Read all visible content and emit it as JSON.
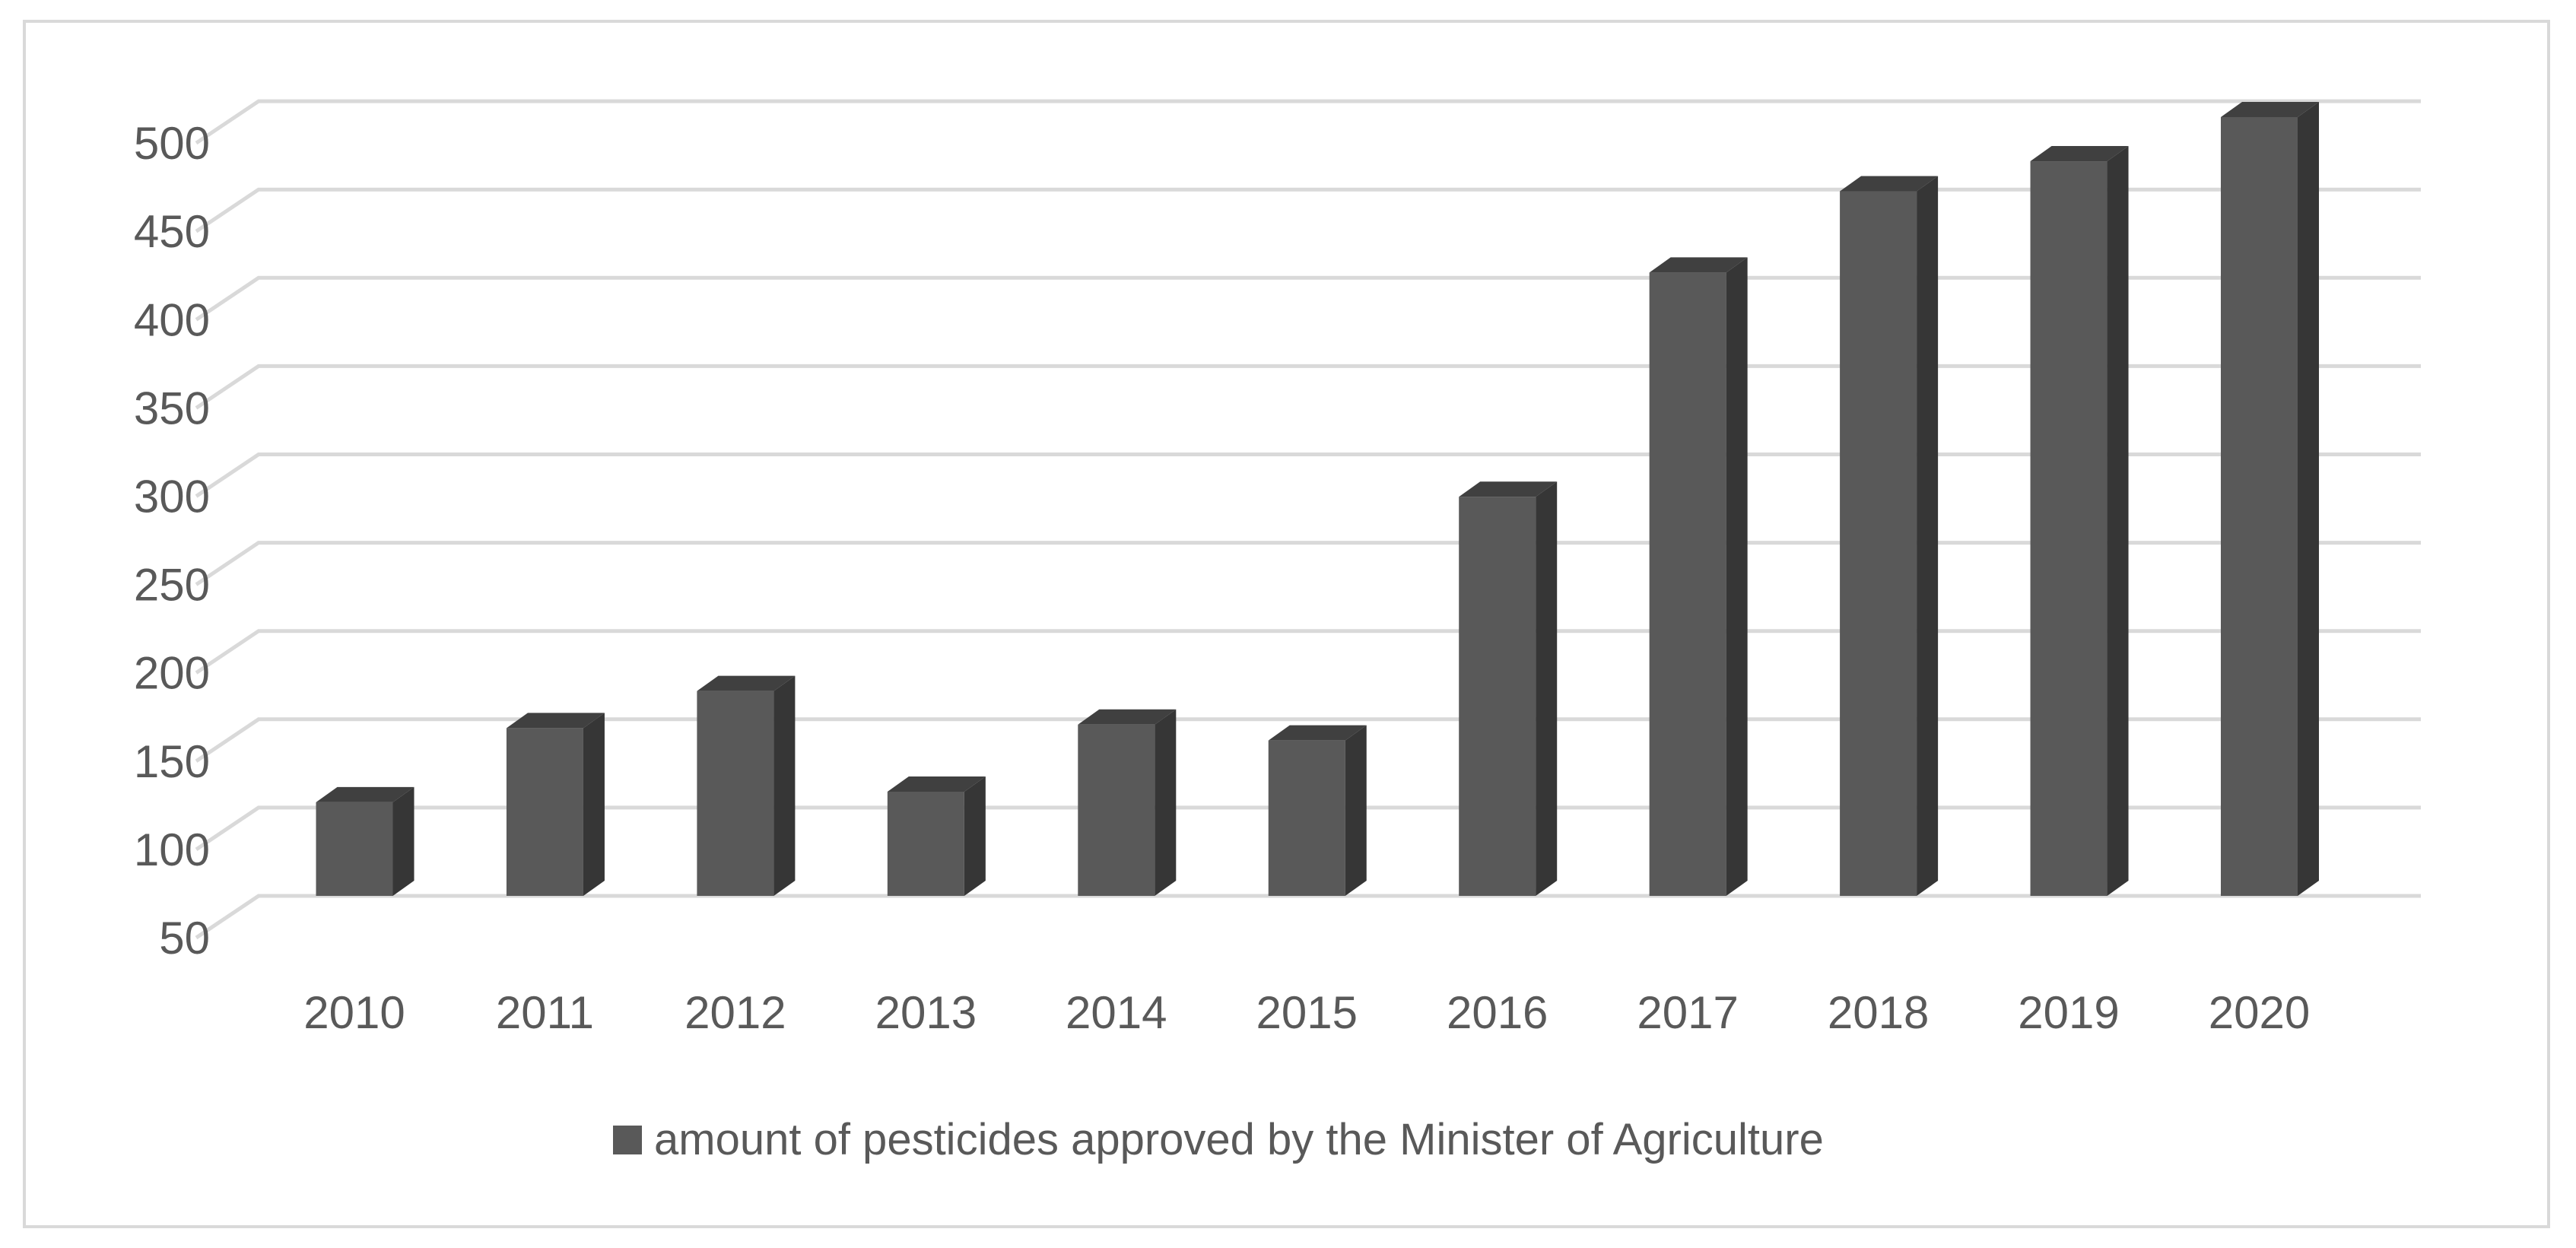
{
  "chart_data": {
    "type": "bar",
    "title": "",
    "xlabel": "",
    "ylabel": "",
    "categories": [
      "2010",
      "2011",
      "2012",
      "2013",
      "2014",
      "2015",
      "2016",
      "2017",
      "2018",
      "2019",
      "2020"
    ],
    "series": [
      {
        "name": "amount of pesticides approved by the Minister of Agriculture",
        "values": [
          103,
          145,
          166,
          109,
          147,
          138,
          276,
          403,
          449,
          466,
          491
        ],
        "color": "#595959"
      }
    ],
    "ylim": [
      50,
      500
    ],
    "yticks": [
      "50",
      "100",
      "150",
      "200",
      "250",
      "300",
      "350",
      "400",
      "450",
      "500"
    ],
    "grid": true,
    "legend_position": "bottom",
    "style": "3d-column"
  }
}
